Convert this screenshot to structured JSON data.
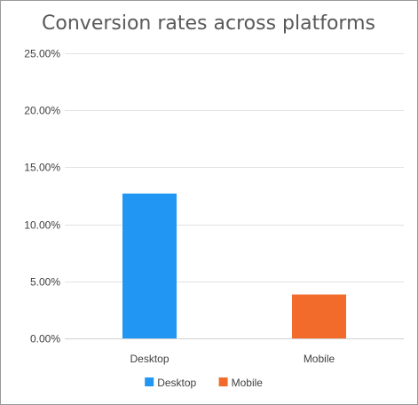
{
  "chart_data": {
    "type": "bar",
    "title": "Conversion rates across platforms",
    "categories": [
      "Desktop",
      "Mobile"
    ],
    "series": [
      {
        "name": "Desktop",
        "values": [
          12.7,
          null
        ],
        "color": "#2196f3"
      },
      {
        "name": "Mobile",
        "values": [
          null,
          3.85
        ],
        "color": "#f26b2a"
      }
    ],
    "yticks": [
      "0.00%",
      "5.00%",
      "10.00%",
      "15.00%",
      "20.00%",
      "25.00%"
    ],
    "ylim": [
      0,
      25
    ],
    "grid": true,
    "legend_position": "bottom",
    "xlabel": "",
    "ylabel": ""
  }
}
